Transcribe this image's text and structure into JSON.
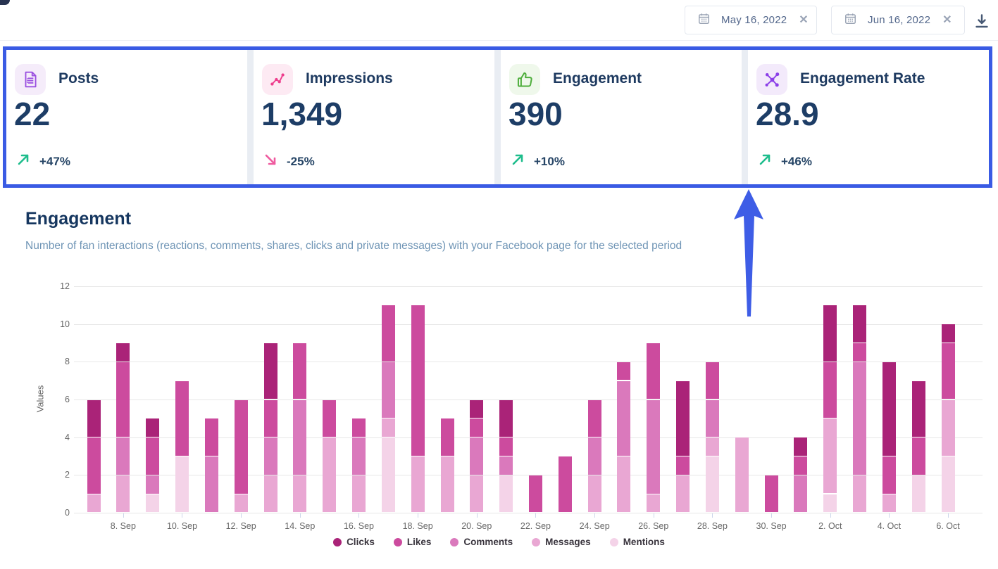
{
  "header": {
    "date_from": {
      "value": "May 16, 2022",
      "calendar_icon": "calendar-icon",
      "clear_icon": "close-icon"
    },
    "date_to": {
      "value": "Jun 16, 2022",
      "calendar_icon": "calendar-icon",
      "clear_icon": "close-icon"
    },
    "download_icon": "download-icon"
  },
  "cards": [
    {
      "label": "Posts",
      "value": "22",
      "delta": "+47%",
      "direction": "up",
      "icon": "document-icon",
      "icon_color": "#9b51e0",
      "icon_bg": "#f5ecfa"
    },
    {
      "label": "Impressions",
      "value": "1,349",
      "delta": "-25%",
      "direction": "down",
      "icon": "share-nodes-icon",
      "icon_color": "#ee3d8d",
      "icon_bg": "#fdeaf3"
    },
    {
      "label": "Engagement",
      "value": "390",
      "delta": "+10%",
      "direction": "up",
      "icon": "thumbs-up-icon",
      "icon_color": "#4fae3d",
      "icon_bg": "#eff8eb"
    },
    {
      "label": "Engagement Rate",
      "value": "28.9",
      "delta": "+46%",
      "direction": "up",
      "icon": "network-icon",
      "icon_color": "#8b3fe8",
      "icon_bg": "#f3eafb"
    }
  ],
  "section": {
    "title": "Engagement",
    "subtitle": "Number of fan interactions (reactions, comments, shares, clicks and private messages) with your Facebook page for the selected period"
  },
  "chart_data": {
    "type": "bar",
    "stacked": true,
    "title": "Engagement",
    "xlabel": "",
    "ylabel": "Values",
    "ylim": [
      0,
      12
    ],
    "y_ticks": [
      0,
      2,
      4,
      6,
      8,
      10,
      12
    ],
    "grid": true,
    "legend_position": "bottom",
    "categories": [
      "7. Sep",
      "8. Sep",
      "9. Sep",
      "10. Sep",
      "11. Sep",
      "12. Sep",
      "13. Sep",
      "14. Sep",
      "15. Sep",
      "16. Sep",
      "17. Sep",
      "18. Sep",
      "19. Sep",
      "20. Sep",
      "21. Sep",
      "22. Sep",
      "23. Sep",
      "24. Sep",
      "25. Sep",
      "26. Sep",
      "27. Sep",
      "28. Sep",
      "29. Sep",
      "30. Sep",
      "1. Oct",
      "2. Oct",
      "3. Oct",
      "4. Oct",
      "5. Oct",
      "6. Oct"
    ],
    "x_tick_labels": [
      "8. Sep",
      "10. Sep",
      "12. Sep",
      "14. Sep",
      "16. Sep",
      "18. Sep",
      "20. Sep",
      "22. Sep",
      "24. Sep",
      "26. Sep",
      "28. Sep",
      "30. Sep",
      "2. Oct",
      "4. Oct",
      "6. Oct"
    ],
    "series": [
      {
        "name": "Clicks",
        "color": "#aa2378",
        "values": [
          2,
          1,
          1,
          0,
          0,
          0,
          3,
          0,
          0,
          0,
          0,
          0,
          0,
          1,
          2,
          0,
          0,
          0,
          0,
          0,
          4,
          0,
          0,
          0,
          1,
          3,
          2,
          5,
          3,
          1
        ]
      },
      {
        "name": "Likes",
        "color": "#cc4b9e",
        "values": [
          3,
          4,
          2,
          4,
          2,
          5,
          2,
          3,
          2,
          1,
          3,
          8,
          2,
          1,
          1,
          2,
          3,
          2,
          1,
          3,
          1,
          2,
          0,
          2,
          1,
          3,
          1,
          2,
          2,
          3
        ]
      },
      {
        "name": "Comments",
        "color": "#da79bc",
        "values": [
          0,
          2,
          1,
          0,
          3,
          0,
          2,
          4,
          0,
          2,
          3,
          0,
          0,
          2,
          1,
          0,
          0,
          2,
          4,
          5,
          0,
          2,
          0,
          0,
          2,
          0,
          6,
          0,
          0,
          0
        ]
      },
      {
        "name": "Messages",
        "color": "#e9a7d3",
        "values": [
          1,
          2,
          0,
          0,
          0,
          1,
          2,
          2,
          4,
          2,
          1,
          3,
          3,
          2,
          0,
          0,
          0,
          2,
          3,
          1,
          2,
          1,
          4,
          0,
          0,
          4,
          2,
          1,
          0,
          3
        ]
      },
      {
        "name": "Mentions",
        "color": "#f4d3e8",
        "values": [
          0,
          0,
          1,
          3,
          0,
          0,
          0,
          0,
          0,
          0,
          4,
          0,
          0,
          0,
          2,
          0,
          0,
          0,
          0,
          0,
          0,
          3,
          0,
          0,
          0,
          1,
          0,
          0,
          2,
          3
        ]
      }
    ]
  },
  "colors": {
    "highlight_border": "#3a5be4",
    "annotation_arrow": "#3e5de6",
    "delta_up": "#1ebd8c",
    "delta_down": "#ef5b9f",
    "title_navy": "#15365f",
    "subtitle_blue": "#6e94b5"
  }
}
